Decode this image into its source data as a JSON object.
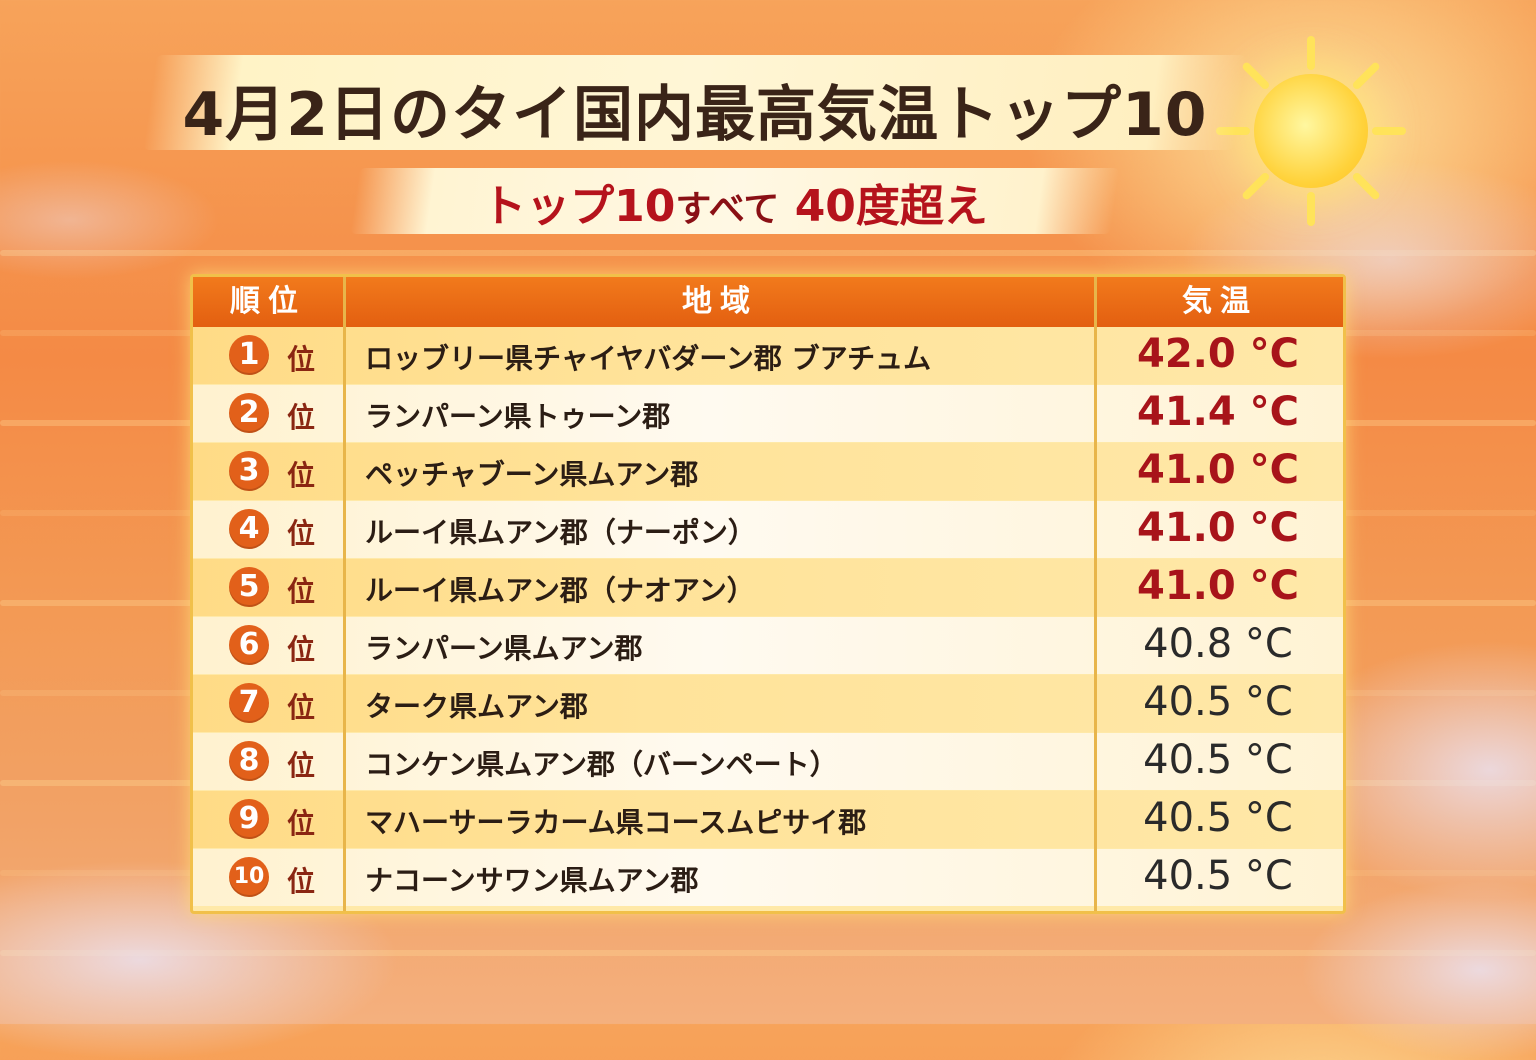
{
  "header": {
    "title": "4月2日のタイ国内最高気温トップ10",
    "subtitle_part1": "トップ10",
    "subtitle_part2": "すべて",
    "subtitle_part3": "40度超え"
  },
  "table": {
    "columns": [
      "順位",
      "地域",
      "気温"
    ],
    "rows": [
      {
        "rank": "1",
        "suffix": "位",
        "region": "ロッブリー県チャイヤバダーン郡 ブアチュム",
        "temp": "42.0 °C",
        "hot": true
      },
      {
        "rank": "2",
        "suffix": "位",
        "region": "ランパーン県トゥーン郡",
        "temp": "41.4 °C",
        "hot": true
      },
      {
        "rank": "3",
        "suffix": "位",
        "region": "ペッチャブーン県ムアン郡",
        "temp": "41.0 °C",
        "hot": true
      },
      {
        "rank": "4",
        "suffix": "位",
        "region": "ルーイ県ムアン郡（ナーポン）",
        "temp": "41.0 °C",
        "hot": true
      },
      {
        "rank": "5",
        "suffix": "位",
        "region": "ルーイ県ムアン郡（ナオアン）",
        "temp": "41.0 °C",
        "hot": true
      },
      {
        "rank": "6",
        "suffix": "位",
        "region": "ランパーン県ムアン郡",
        "temp": "40.8 °C",
        "hot": false
      },
      {
        "rank": "7",
        "suffix": "位",
        "region": "ターク県ムアン郡",
        "temp": "40.5 °C",
        "hot": false
      },
      {
        "rank": "8",
        "suffix": "位",
        "region": "コンケン県ムアン郡（バーンペート）",
        "temp": "40.5 °C",
        "hot": false
      },
      {
        "rank": "9",
        "suffix": "位",
        "region": "マハーサーラカーム県コースムピサイ郡",
        "temp": "40.5 °C",
        "hot": false
      },
      {
        "rank": "10",
        "suffix": "位",
        "region": "ナコーンサワン県ムアン郡",
        "temp": "40.5 °C",
        "hot": false
      }
    ]
  },
  "colors": {
    "header_bg": "#e8651a",
    "hot_temp": "#a8141a",
    "rank_circle": "#e2601a",
    "subtitle": "#b5131c"
  },
  "icons": [
    "sun-icon"
  ]
}
